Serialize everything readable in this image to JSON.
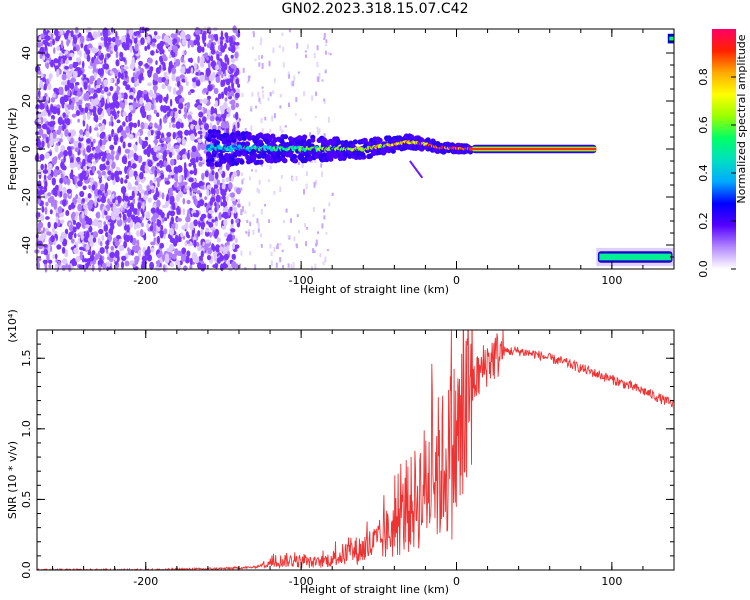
{
  "title": "GN02.2023.318.15.07.C42",
  "chart_data": [
    {
      "type": "heatmap",
      "xlabel": "Height of straight line (km)",
      "ylabel": "Frequency (Hz)",
      "xlim": [
        -270,
        140
      ],
      "ylim": [
        -50,
        50
      ],
      "xticks": [
        -200,
        -100,
        0,
        100
      ],
      "yticks": [
        -40,
        -20,
        0,
        20,
        40
      ],
      "colorbar": {
        "label": "Normalized spectral amplitude",
        "range": [
          0,
          1
        ],
        "ticks": [
          "0.0",
          "0.2",
          "0.4",
          "0.6",
          "0.8"
        ],
        "colors": [
          "#ffffff",
          "#b388ff",
          "#5500ff",
          "#0000ff",
          "#00aaff",
          "#00e0c0",
          "#00ff66",
          "#99ff00",
          "#ffff00",
          "#ffaa00",
          "#ff2200",
          "#ff0066"
        ]
      },
      "features": [
        {
          "name": "noise",
          "x_range": [
            -270,
            -140
          ],
          "y_range": [
            -50,
            50
          ],
          "amplitude": 0.1
        },
        {
          "name": "signal",
          "points": [
            [
              -160,
              0.5
            ],
            [
              -100,
              0.0
            ],
            [
              -60,
              0.0
            ],
            [
              -40,
              2.0
            ],
            [
              -30,
              3.0
            ],
            [
              -20,
              2.0
            ],
            [
              -10,
              0.5
            ],
            [
              10,
              0.0
            ],
            [
              90,
              0.0
            ]
          ],
          "amplitude_start": 0.35,
          "amplitude_end": 0.9
        },
        {
          "name": "offset-band",
          "x_range": [
            90,
            140
          ],
          "y": -45,
          "amplitude": 0.5
        },
        {
          "name": "edge-band",
          "x_range": [
            136,
            140
          ],
          "y": 46,
          "amplitude": 0.6
        }
      ]
    },
    {
      "type": "line",
      "xlabel": "Height of straight line (km)",
      "ylabel": "SNR (10 * v/v)",
      "multiplier": "(x10⁴)",
      "xlim": [
        -270,
        140
      ],
      "ylim": [
        0,
        1.7
      ],
      "xticks": [
        -200,
        -100,
        0,
        100
      ],
      "yticks": [
        "0.0",
        "0.5",
        "1.0",
        "1.5"
      ],
      "series": [
        {
          "color": "#ee3333",
          "x": [
            -270,
            -250,
            -200,
            -150,
            -130,
            -120,
            -110,
            -100,
            -90,
            -80,
            -70,
            -60,
            -50,
            -40,
            -30,
            -20,
            -15,
            -10,
            -5,
            0,
            5,
            10,
            20,
            30,
            40,
            50,
            60,
            70,
            80,
            90,
            100,
            110,
            120,
            130,
            140
          ],
          "y": [
            0.0,
            0.0,
            0.0,
            0.01,
            0.02,
            0.05,
            0.07,
            0.06,
            0.05,
            0.08,
            0.12,
            0.15,
            0.2,
            0.3,
            0.45,
            0.6,
            0.7,
            0.72,
            0.8,
            0.9,
            1.0,
            1.3,
            1.48,
            1.55,
            1.55,
            1.53,
            1.5,
            1.47,
            1.43,
            1.39,
            1.35,
            1.31,
            1.27,
            1.22,
            1.17
          ]
        }
      ]
    }
  ]
}
